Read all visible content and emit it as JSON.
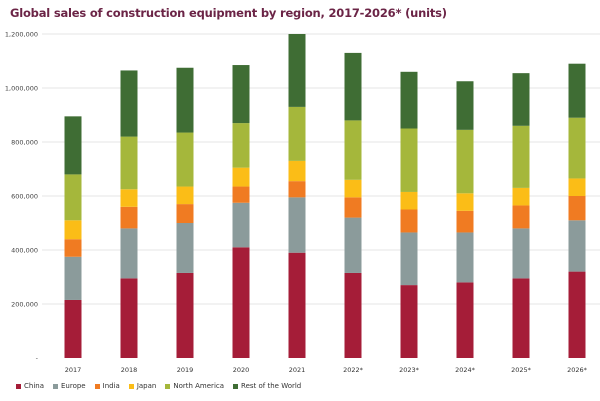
{
  "chart_data": {
    "type": "bar",
    "stacked": true,
    "title": "Global sales of construction equipment by region, 2017-2026* (units)",
    "xlabel": "",
    "ylabel": "",
    "ylim": [
      0,
      1200000
    ],
    "yticks": [
      "-",
      "200,000",
      "400,000",
      "600,000",
      "800,000",
      "1,000,000",
      "1,200,000"
    ],
    "grid": true,
    "legend": "bottom",
    "categories": [
      "2017",
      "2018",
      "2019",
      "2020",
      "2021",
      "2022*",
      "2023*",
      "2024*",
      "2025*",
      "2026*"
    ],
    "series": [
      {
        "name": "China",
        "color": "#a51d38",
        "values": [
          215000,
          295000,
          315000,
          410000,
          390000,
          315000,
          270000,
          280000,
          295000,
          320000
        ]
      },
      {
        "name": "Europe",
        "color": "#8b9b9b",
        "values": [
          160000,
          185000,
          185000,
          165000,
          205000,
          205000,
          195000,
          185000,
          185000,
          190000
        ]
      },
      {
        "name": "India",
        "color": "#f07b22",
        "values": [
          65000,
          80000,
          70000,
          60000,
          60000,
          75000,
          85000,
          80000,
          85000,
          90000
        ]
      },
      {
        "name": "Japan",
        "color": "#fbbd17",
        "values": [
          70000,
          65000,
          65000,
          70000,
          75000,
          65000,
          65000,
          65000,
          65000,
          65000
        ]
      },
      {
        "name": "North America",
        "color": "#a5b73b",
        "values": [
          170000,
          195000,
          200000,
          165000,
          200000,
          220000,
          235000,
          235000,
          230000,
          225000
        ]
      },
      {
        "name": "Rest of the World",
        "color": "#3f6d34",
        "values": [
          215000,
          245000,
          240000,
          215000,
          270000,
          250000,
          210000,
          180000,
          195000,
          200000
        ]
      }
    ]
  }
}
